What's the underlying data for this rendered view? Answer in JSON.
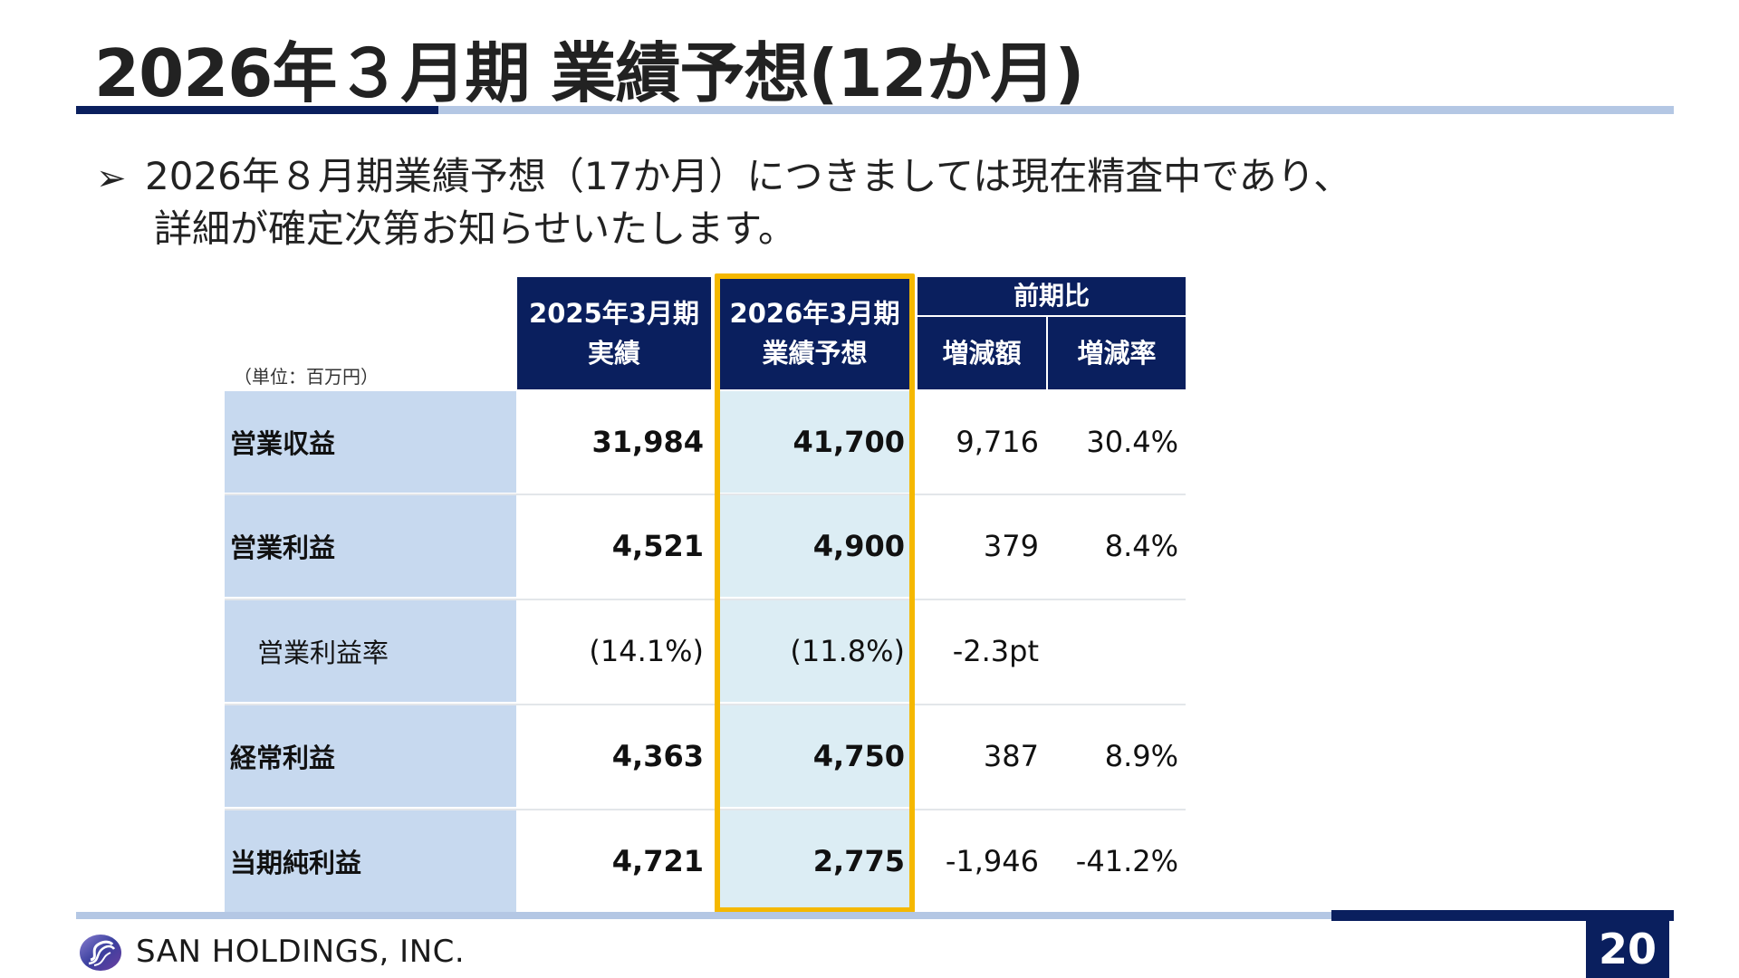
{
  "title": "2026年３月期 業績予想(12か月)",
  "bullet": {
    "marker": "➢",
    "line1": "2026年８月期業績予想（17か月）につきましては現在精査中であり、",
    "line2": "詳細が確定次第お知らせいたします。"
  },
  "table": {
    "unit": "（単位：百万円）",
    "headers": {
      "col2025": [
        "2025年3月期",
        "実績"
      ],
      "col2026": [
        "2026年3月期",
        "業績予想"
      ],
      "comparison": "前期比",
      "increase": "増減額",
      "rate": "増減率"
    },
    "rows": [
      {
        "label": "営業収益",
        "v2025": "31,984",
        "v2026": "41,700",
        "inc": "9,716",
        "rate": "30.4%"
      },
      {
        "label": "営業利益",
        "v2025": "4,521",
        "v2026": "4,900",
        "inc": "379",
        "rate": "8.4%"
      },
      {
        "label": "営業利益率",
        "v2025": "(14.1%)",
        "v2026": "(11.8%)",
        "inc": "-2.3pt",
        "rate": ""
      },
      {
        "label": "経常利益",
        "v2025": "4,363",
        "v2026": "4,750",
        "inc": "387",
        "rate": "8.9%"
      },
      {
        "label": "当期純利益",
        "v2025": "4,721",
        "v2026": "2,775",
        "inc": "-1,946",
        "rate": "-41.2%"
      }
    ]
  },
  "footer": {
    "company": "SAN HOLDINGS, INC.",
    "page": "20"
  },
  "colors": {
    "navy": "#0a1f5e",
    "light_blue": "#b4c7e4",
    "label_bg": "#c7d9ef",
    "highlight": "#f5b800",
    "forecast_bg": "#dcedf4"
  }
}
